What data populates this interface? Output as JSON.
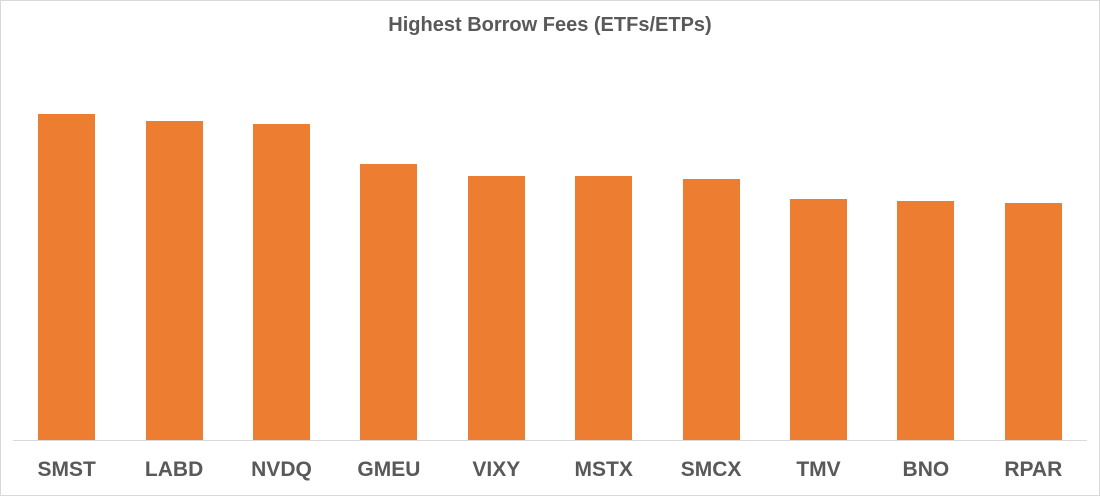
{
  "chart_data": {
    "type": "bar",
    "title": "Highest Borrow Fees (ETFs/ETPs)",
    "xlabel": "",
    "ylabel": "",
    "categories": [
      "SMST",
      "LABD",
      "NVDQ",
      "GMEU",
      "VIXY",
      "MSTX",
      "SMCX",
      "TMV",
      "BNO",
      "RPAR"
    ],
    "values": [
      326,
      319,
      316,
      276,
      264,
      264,
      261,
      241,
      239,
      237
    ],
    "values_note": "relative bar heights in pixels; no y-axis or data labels shown",
    "ylim": [
      0,
      380
    ],
    "grid": false,
    "legend": null,
    "bar_color": "#ed7d31"
  },
  "colors": {
    "bar": "#ed7d31",
    "text": "#595959",
    "axis": "#d9d9d9"
  }
}
